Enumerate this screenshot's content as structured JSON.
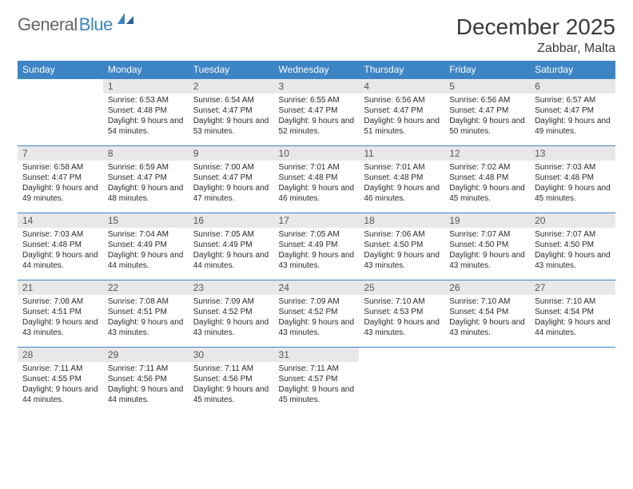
{
  "logo": {
    "word1": "General",
    "word2": "Blue"
  },
  "title": "December 2025",
  "location": "Zabbar, Malta",
  "colors": {
    "header_bg": "#3d84c4",
    "header_fg": "#ffffff",
    "daynum_bg": "#e8e8e8",
    "daynum_fg": "#555555",
    "row_border": "#3d84c4",
    "logo_gray": "#646464",
    "logo_blue": "#3d84c4"
  },
  "weekdays": [
    "Sunday",
    "Monday",
    "Tuesday",
    "Wednesday",
    "Thursday",
    "Friday",
    "Saturday"
  ],
  "weeks": [
    [
      null,
      {
        "n": "1",
        "sr": "6:53 AM",
        "ss": "4:48 PM",
        "dl": "9 hours and 54 minutes."
      },
      {
        "n": "2",
        "sr": "6:54 AM",
        "ss": "4:47 PM",
        "dl": "9 hours and 53 minutes."
      },
      {
        "n": "3",
        "sr": "6:55 AM",
        "ss": "4:47 PM",
        "dl": "9 hours and 52 minutes."
      },
      {
        "n": "4",
        "sr": "6:56 AM",
        "ss": "4:47 PM",
        "dl": "9 hours and 51 minutes."
      },
      {
        "n": "5",
        "sr": "6:56 AM",
        "ss": "4:47 PM",
        "dl": "9 hours and 50 minutes."
      },
      {
        "n": "6",
        "sr": "6:57 AM",
        "ss": "4:47 PM",
        "dl": "9 hours and 49 minutes."
      }
    ],
    [
      {
        "n": "7",
        "sr": "6:58 AM",
        "ss": "4:47 PM",
        "dl": "9 hours and 49 minutes."
      },
      {
        "n": "8",
        "sr": "6:59 AM",
        "ss": "4:47 PM",
        "dl": "9 hours and 48 minutes."
      },
      {
        "n": "9",
        "sr": "7:00 AM",
        "ss": "4:47 PM",
        "dl": "9 hours and 47 minutes."
      },
      {
        "n": "10",
        "sr": "7:01 AM",
        "ss": "4:48 PM",
        "dl": "9 hours and 46 minutes."
      },
      {
        "n": "11",
        "sr": "7:01 AM",
        "ss": "4:48 PM",
        "dl": "9 hours and 46 minutes."
      },
      {
        "n": "12",
        "sr": "7:02 AM",
        "ss": "4:48 PM",
        "dl": "9 hours and 45 minutes."
      },
      {
        "n": "13",
        "sr": "7:03 AM",
        "ss": "4:48 PM",
        "dl": "9 hours and 45 minutes."
      }
    ],
    [
      {
        "n": "14",
        "sr": "7:03 AM",
        "ss": "4:48 PM",
        "dl": "9 hours and 44 minutes."
      },
      {
        "n": "15",
        "sr": "7:04 AM",
        "ss": "4:49 PM",
        "dl": "9 hours and 44 minutes."
      },
      {
        "n": "16",
        "sr": "7:05 AM",
        "ss": "4:49 PM",
        "dl": "9 hours and 44 minutes."
      },
      {
        "n": "17",
        "sr": "7:05 AM",
        "ss": "4:49 PM",
        "dl": "9 hours and 43 minutes."
      },
      {
        "n": "18",
        "sr": "7:06 AM",
        "ss": "4:50 PM",
        "dl": "9 hours and 43 minutes."
      },
      {
        "n": "19",
        "sr": "7:07 AM",
        "ss": "4:50 PM",
        "dl": "9 hours and 43 minutes."
      },
      {
        "n": "20",
        "sr": "7:07 AM",
        "ss": "4:50 PM",
        "dl": "9 hours and 43 minutes."
      }
    ],
    [
      {
        "n": "21",
        "sr": "7:08 AM",
        "ss": "4:51 PM",
        "dl": "9 hours and 43 minutes."
      },
      {
        "n": "22",
        "sr": "7:08 AM",
        "ss": "4:51 PM",
        "dl": "9 hours and 43 minutes."
      },
      {
        "n": "23",
        "sr": "7:09 AM",
        "ss": "4:52 PM",
        "dl": "9 hours and 43 minutes."
      },
      {
        "n": "24",
        "sr": "7:09 AM",
        "ss": "4:52 PM",
        "dl": "9 hours and 43 minutes."
      },
      {
        "n": "25",
        "sr": "7:10 AM",
        "ss": "4:53 PM",
        "dl": "9 hours and 43 minutes."
      },
      {
        "n": "26",
        "sr": "7:10 AM",
        "ss": "4:54 PM",
        "dl": "9 hours and 43 minutes."
      },
      {
        "n": "27",
        "sr": "7:10 AM",
        "ss": "4:54 PM",
        "dl": "9 hours and 44 minutes."
      }
    ],
    [
      {
        "n": "28",
        "sr": "7:11 AM",
        "ss": "4:55 PM",
        "dl": "9 hours and 44 minutes."
      },
      {
        "n": "29",
        "sr": "7:11 AM",
        "ss": "4:56 PM",
        "dl": "9 hours and 44 minutes."
      },
      {
        "n": "30",
        "sr": "7:11 AM",
        "ss": "4:56 PM",
        "dl": "9 hours and 45 minutes."
      },
      {
        "n": "31",
        "sr": "7:11 AM",
        "ss": "4:57 PM",
        "dl": "9 hours and 45 minutes."
      },
      null,
      null,
      null
    ]
  ],
  "labels": {
    "sunrise": "Sunrise:",
    "sunset": "Sunset:",
    "daylight": "Daylight:"
  }
}
